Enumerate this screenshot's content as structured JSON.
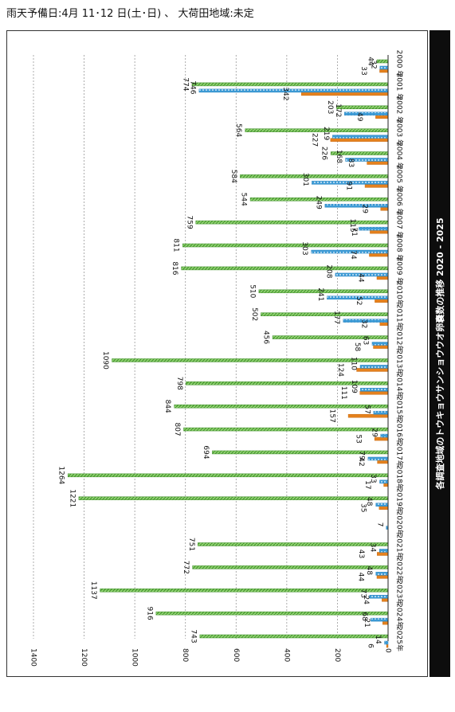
{
  "caption": "雨天予備日:4月 11･12 日(土･日) 、 大荷田地域:未定",
  "chart_data": {
    "type": "bar",
    "orientation": "horizontal",
    "title": "各調査地域のトウキョウサンショウウオ卵嚢数の推移  2020 - 2025",
    "categories": [
      "2000 年",
      "2001 年",
      "2002 年",
      "2003 年",
      "2004 年",
      "2005 年",
      "2006 年",
      "2007 年",
      "2008 年",
      "2009 年",
      "2010年",
      "2011年",
      "2012年",
      "2013年",
      "2014年",
      "2015年",
      "2016年",
      "2017年",
      "2018年",
      "2019年",
      "2020年",
      "2021年",
      "2022年",
      "2023年",
      "2024年",
      "2025年"
    ],
    "series": [
      {
        "color": "#e5811d",
        "values": [
          33,
          342,
          49,
          227,
          83,
          91,
          29,
          71,
          74,
          44,
          52,
          32,
          58,
          124,
          111,
          157,
          53,
          42,
          17,
          35,
          0,
          43,
          44,
          24,
          21,
          6
        ]
      },
      {
        "color": "#4da6dc",
        "values": [
          32,
          746,
          172,
          219,
          168,
          301,
          249,
          115,
          303,
          208,
          241,
          177,
          63,
          110,
          109,
          57,
          29,
          79,
          33,
          48,
          7,
          34,
          48,
          73,
          68,
          14
        ]
      },
      {
        "color": "#6bbf4c",
        "values": [
          44,
          774,
          203,
          564,
          226,
          584,
          544,
          759,
          811,
          816,
          510,
          502,
          456,
          1090,
          798,
          844,
          807,
          694,
          1264,
          1221,
          0,
          751,
          772,
          1137,
          916,
          743
        ]
      }
    ],
    "ylim": [
      0,
      1400
    ],
    "ticks": [
      0,
      200,
      400,
      600,
      800,
      1000,
      1200,
      1400
    ],
    "grid": true
  }
}
